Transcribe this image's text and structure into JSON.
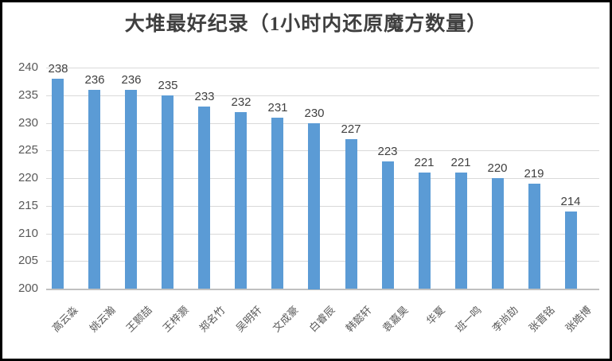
{
  "title": "大堆最好纪录（1小时内还原魔方数量）",
  "chart_data": {
    "type": "bar",
    "title": "大堆最好纪录（1小时内还原魔方数量）",
    "categories": [
      "高云淼",
      "姚云瀚",
      "王颢喆",
      "王梓灏",
      "郑名竹",
      "吴明轩",
      "文成豪",
      "白睿辰",
      "韩懿轩",
      "袁嘉昊",
      "华夏",
      "班一鸣",
      "李尚劼",
      "张晋铭",
      "张皓博"
    ],
    "values": [
      238,
      236,
      236,
      235,
      233,
      232,
      231,
      230,
      227,
      223,
      221,
      221,
      220,
      219,
      214
    ],
    "data_labels_shown": true,
    "xlabel": "",
    "ylabel": "",
    "ylim": [
      200,
      240
    ],
    "ytick_step": 5,
    "ytick_labels": [
      "200",
      "205",
      "210",
      "215",
      "220",
      "225",
      "230",
      "235",
      "240"
    ],
    "grid": true,
    "legend": false,
    "bar_color": "#5b9bd5",
    "value_label_color": "#404040",
    "axis_text_color": "#595959",
    "gridline_color": "#d9d9d9",
    "title_color": "#3f3f3f"
  }
}
